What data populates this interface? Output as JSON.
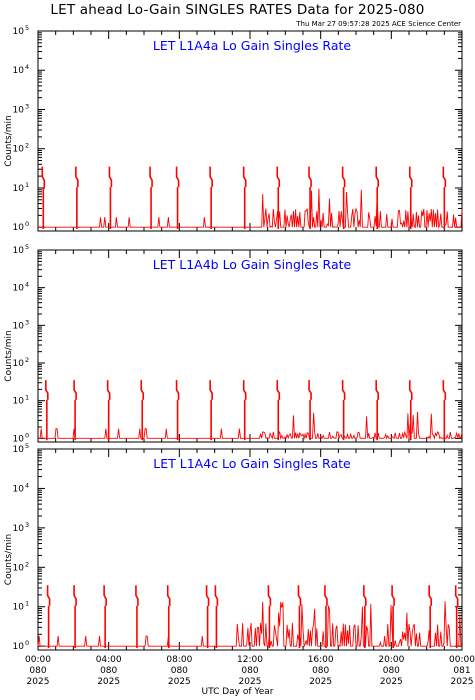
{
  "title": "LET ahead Lo-Gain SINGLES RATES Data for 2025-080",
  "timestamp": "Thu Mar 27 09:57:28 2025 ACE Science Center",
  "x_axis_label": "UTC Day of Year",
  "colors": {
    "data": "#ff0000",
    "panel_title": "#0000ff",
    "axes": "#000000"
  },
  "chart_data": [
    {
      "type": "line",
      "title": "LET L1A4a Lo Gain Singles Rate",
      "ylabel": "Counts/min",
      "yscale": "log",
      "ylim": [
        0.8,
        100000
      ],
      "xlim": [
        0,
        24
      ],
      "y_ticks": [
        "10^0",
        "10^1",
        "10^2",
        "10^3",
        "10^4",
        "10^5"
      ],
      "spike_hours": [
        0.3,
        2.2,
        4.1,
        6.4,
        7.9,
        9.8,
        11.7,
        13.6,
        15.4,
        17.3,
        19.2,
        21.1,
        23.0
      ],
      "spike_max": 35,
      "baseline": 1,
      "elevated_background_after_hour": 12.5,
      "background_max": 3
    },
    {
      "type": "line",
      "title": "LET L1A4b Lo Gain Singles Rate",
      "ylabel": "Counts/min",
      "yscale": "log",
      "ylim": [
        0.8,
        100000
      ],
      "xlim": [
        0,
        24
      ],
      "y_ticks": [
        "10^0",
        "10^1",
        "10^2",
        "10^3",
        "10^4",
        "10^5"
      ],
      "spike_hours": [
        0.5,
        2.1,
        4.0,
        5.9,
        7.9,
        9.8,
        11.7,
        13.6,
        15.4,
        17.3,
        19.2,
        21.1,
        23.0
      ],
      "spike_max": 35,
      "baseline": 1,
      "elevated_background_after_hour": 12.5,
      "background_max": 1.5
    },
    {
      "type": "line",
      "title": "LET L1A4c Lo Gain Singles Rate",
      "ylabel": "Counts/min",
      "yscale": "log",
      "ylim": [
        0.8,
        100000
      ],
      "xlim": [
        0,
        24
      ],
      "y_ticks": [
        "10^0",
        "10^1",
        "10^2",
        "10^3",
        "10^4",
        "10^5"
      ],
      "spike_hours": [
        0.6,
        2.1,
        3.8,
        5.6,
        7.4,
        9.6,
        10.1,
        13.1,
        14.8,
        16.3,
        18.5,
        20.1,
        22.2,
        23.7
      ],
      "spike_max": 35,
      "baseline": 1,
      "elevated_background_after_hour": 11.2,
      "background_max": 4
    }
  ],
  "x_ticks": [
    {
      "time": "00:00",
      "doy": "080",
      "year": "2025"
    },
    {
      "time": "04:00",
      "doy": "080",
      "year": "2025"
    },
    {
      "time": "08:00",
      "doy": "080",
      "year": "2025"
    },
    {
      "time": "12:00",
      "doy": "080",
      "year": "2025"
    },
    {
      "time": "16:00",
      "doy": "080",
      "year": "2025"
    },
    {
      "time": "20:00",
      "doy": "080",
      "year": "2025"
    },
    {
      "time": "00:00",
      "doy": "081",
      "year": "2025"
    }
  ]
}
